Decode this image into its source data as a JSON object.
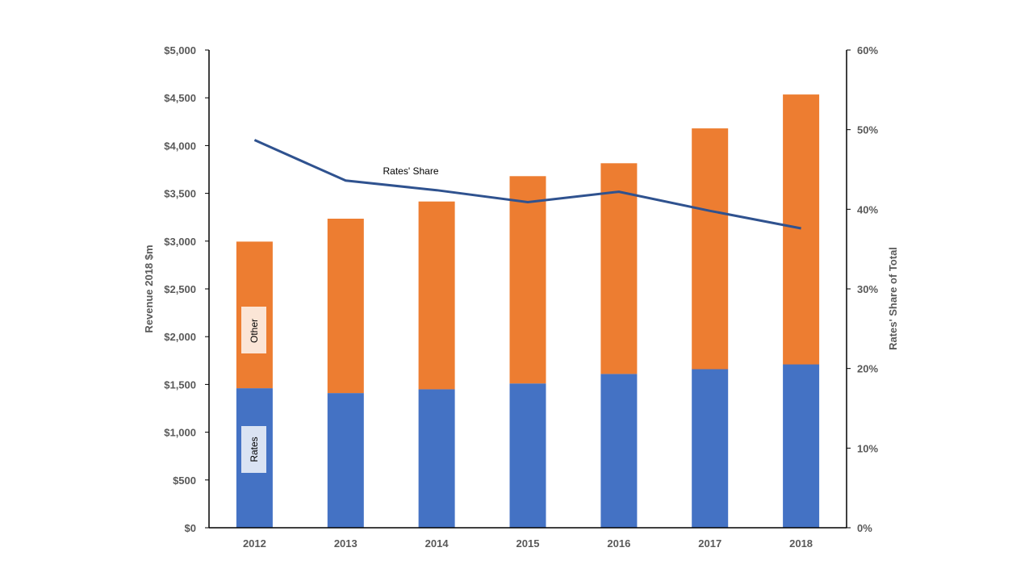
{
  "chart_data": {
    "type": "bar",
    "subtype": "stacked-bar-with-line-secondary-axis",
    "categories": [
      "2012",
      "2013",
      "2014",
      "2015",
      "2016",
      "2017",
      "2018"
    ],
    "series": [
      {
        "name": "Rates",
        "kind": "bar",
        "axis": "left",
        "color": "#4472C4",
        "values": [
          1460,
          1410,
          1450,
          1510,
          1610,
          1660,
          1710
        ]
      },
      {
        "name": "Other",
        "kind": "bar",
        "axis": "left",
        "color": "#ED7D31",
        "values": [
          1535,
          1825,
          1965,
          2170,
          2205,
          2520,
          2825
        ]
      },
      {
        "name": "Rates' Share",
        "kind": "line",
        "axis": "right",
        "color": "#2F528F",
        "values": [
          48.7,
          43.6,
          42.4,
          40.9,
          42.2,
          39.8,
          37.6
        ]
      }
    ],
    "y_left": {
      "label": "Revenue 2018 $m",
      "ylim": [
        0,
        5000
      ],
      "ticks": [
        0,
        500,
        1000,
        1500,
        2000,
        2500,
        3000,
        3500,
        4000,
        4500,
        5000
      ],
      "tick_labels": [
        "$0",
        "$500",
        "$1,000",
        "$1,500",
        "$2,000",
        "$2,500",
        "$3,000",
        "$3,500",
        "$4,000",
        "$4,500",
        "$5,000"
      ]
    },
    "y_right": {
      "label": "Rates' Share of Total",
      "ylim": [
        0,
        60
      ],
      "ticks": [
        0,
        10,
        20,
        30,
        40,
        50,
        60
      ],
      "tick_labels": [
        "0%",
        "10%",
        "20%",
        "30%",
        "40%",
        "50%",
        "60%"
      ]
    },
    "annotations": {
      "rates_label": "Rates",
      "other_label": "Other",
      "share_label": "Rates' Share"
    },
    "grid": false,
    "legend": "none"
  }
}
